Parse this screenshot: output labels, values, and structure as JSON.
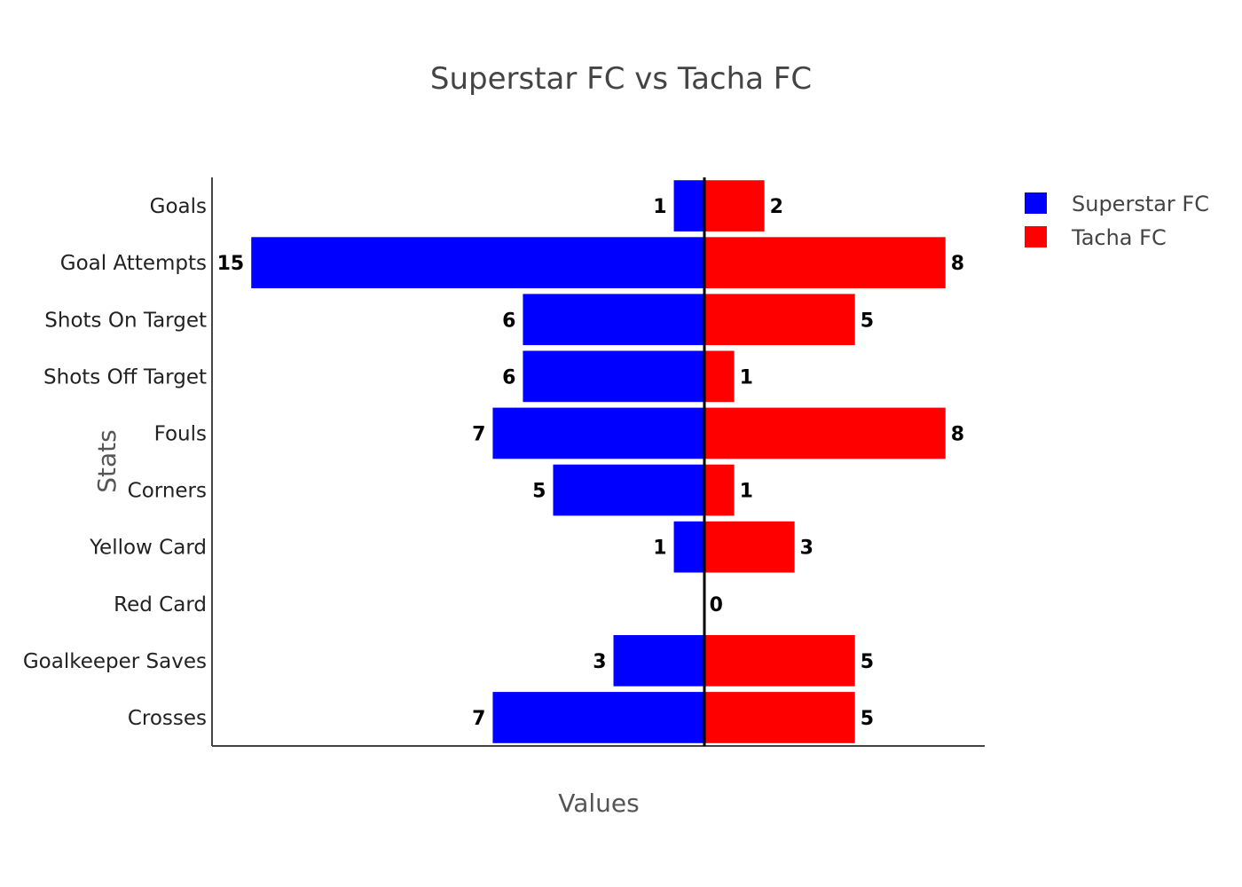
{
  "chart_data": {
    "type": "bar",
    "orientation": "horizontal-diverging",
    "title": "Superstar FC vs Tacha FC",
    "xlabel": "Values",
    "ylabel": "Stats",
    "categories": [
      "Goals",
      "Goal Attempts",
      "Shots On Target",
      "Shots Off Target",
      "Fouls",
      "Corners",
      "Yellow Card",
      "Red Card",
      "Goalkeeper Saves",
      "Crosses"
    ],
    "series": [
      {
        "name": "Superstar FC",
        "color": "#0000ff",
        "direction": "left",
        "values": [
          1,
          15,
          6,
          6,
          7,
          5,
          1,
          0,
          3,
          7
        ]
      },
      {
        "name": "Tacha FC",
        "color": "#ff0000",
        "direction": "right",
        "values": [
          2,
          8,
          5,
          1,
          8,
          1,
          3,
          0,
          5,
          5
        ]
      }
    ],
    "xlim": [
      -16.3,
      9.3
    ],
    "grid": false,
    "legend": "top-right",
    "data_labels": true
  }
}
